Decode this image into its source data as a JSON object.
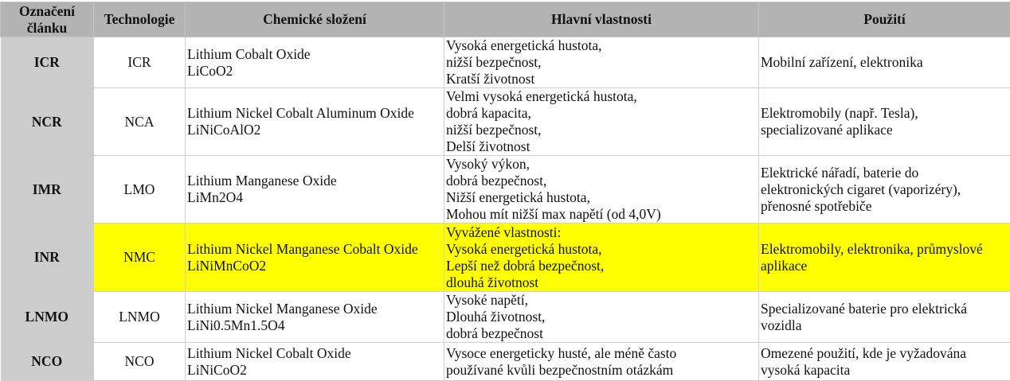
{
  "headers": [
    "Označení článku",
    "Technologie",
    "Chemické složení",
    "Hlavní vlastnosti",
    "Použití"
  ],
  "highlight_color": "#ffff00",
  "rows": [
    {
      "id": "ICR",
      "tech": "ICR",
      "chem": [
        "Lithium Cobalt Oxide",
        "LiCoO2"
      ],
      "props": [
        "Vysoká energetická hustota,",
        "nižší bezpečnost,",
        "Kratší životnost"
      ],
      "use": [
        "Mobilní zařízení, elektronika"
      ]
    },
    {
      "id": "NCR",
      "tech": "NCA",
      "chem": [
        "Lithium Nickel Cobalt Aluminum Oxide",
        "LiNiCoAlO2"
      ],
      "props": [
        "Velmi vysoká energetická hustota,",
        "dobrá kapacita,",
        "nižší bezpečnost,",
        "Delší životnost"
      ],
      "use": [
        "Elektromobily (např. Tesla),",
        "specializované aplikace"
      ]
    },
    {
      "id": "IMR",
      "tech": "LMO",
      "chem": [
        "Lithium Manganese Oxide",
        "LiMn2O4"
      ],
      "props": [
        "Vysoký výkon,",
        "dobrá bezpečnost,",
        "Nižší energetická hustota,",
        "Mohou mít nižší max napětí (od 4,0V)"
      ],
      "use": [
        "Elektrické nářadí, baterie do",
        "elektronických cigaret (vaporizéry),",
        "přenosné spotřebiče"
      ]
    },
    {
      "id": "INR",
      "tech": "NMC",
      "chem": [
        "Lithium Nickel Manganese Cobalt Oxide",
        "LiNiMnCoO2"
      ],
      "props": [
        "Vyvážené vlastnosti:",
        "Vysoká energetická hustota,",
        "Lepší než dobrá bezpečnost,",
        "dlouhá životnost"
      ],
      "use": [
        "Elektromobily, elektronika, průmyslové",
        "aplikace"
      ],
      "highlighted": true
    },
    {
      "id": "LNMO",
      "tech": "LNMO",
      "chem": [
        "Lithium Nickel Manganese Oxide",
        "LiNi0.5Mn1.5O4"
      ],
      "props": [
        "Vysoké napětí,",
        "Dlouhá životnost,",
        "dobrá bezpečnost"
      ],
      "use": [
        "Specializované baterie pro elektrická",
        "vozidla"
      ]
    },
    {
      "id": "NCO",
      "tech": "NCO",
      "chem": [
        "Lithium Nickel Cobalt Oxide",
        "LiNiCoO2"
      ],
      "props": [
        "Vysoce energeticky husté, ale méně často",
        "používané kvůli bezpečnostním otázkám"
      ],
      "use": [
        "Omezené použití, kde je vyžadována",
        "vysoká kapacita"
      ]
    }
  ]
}
